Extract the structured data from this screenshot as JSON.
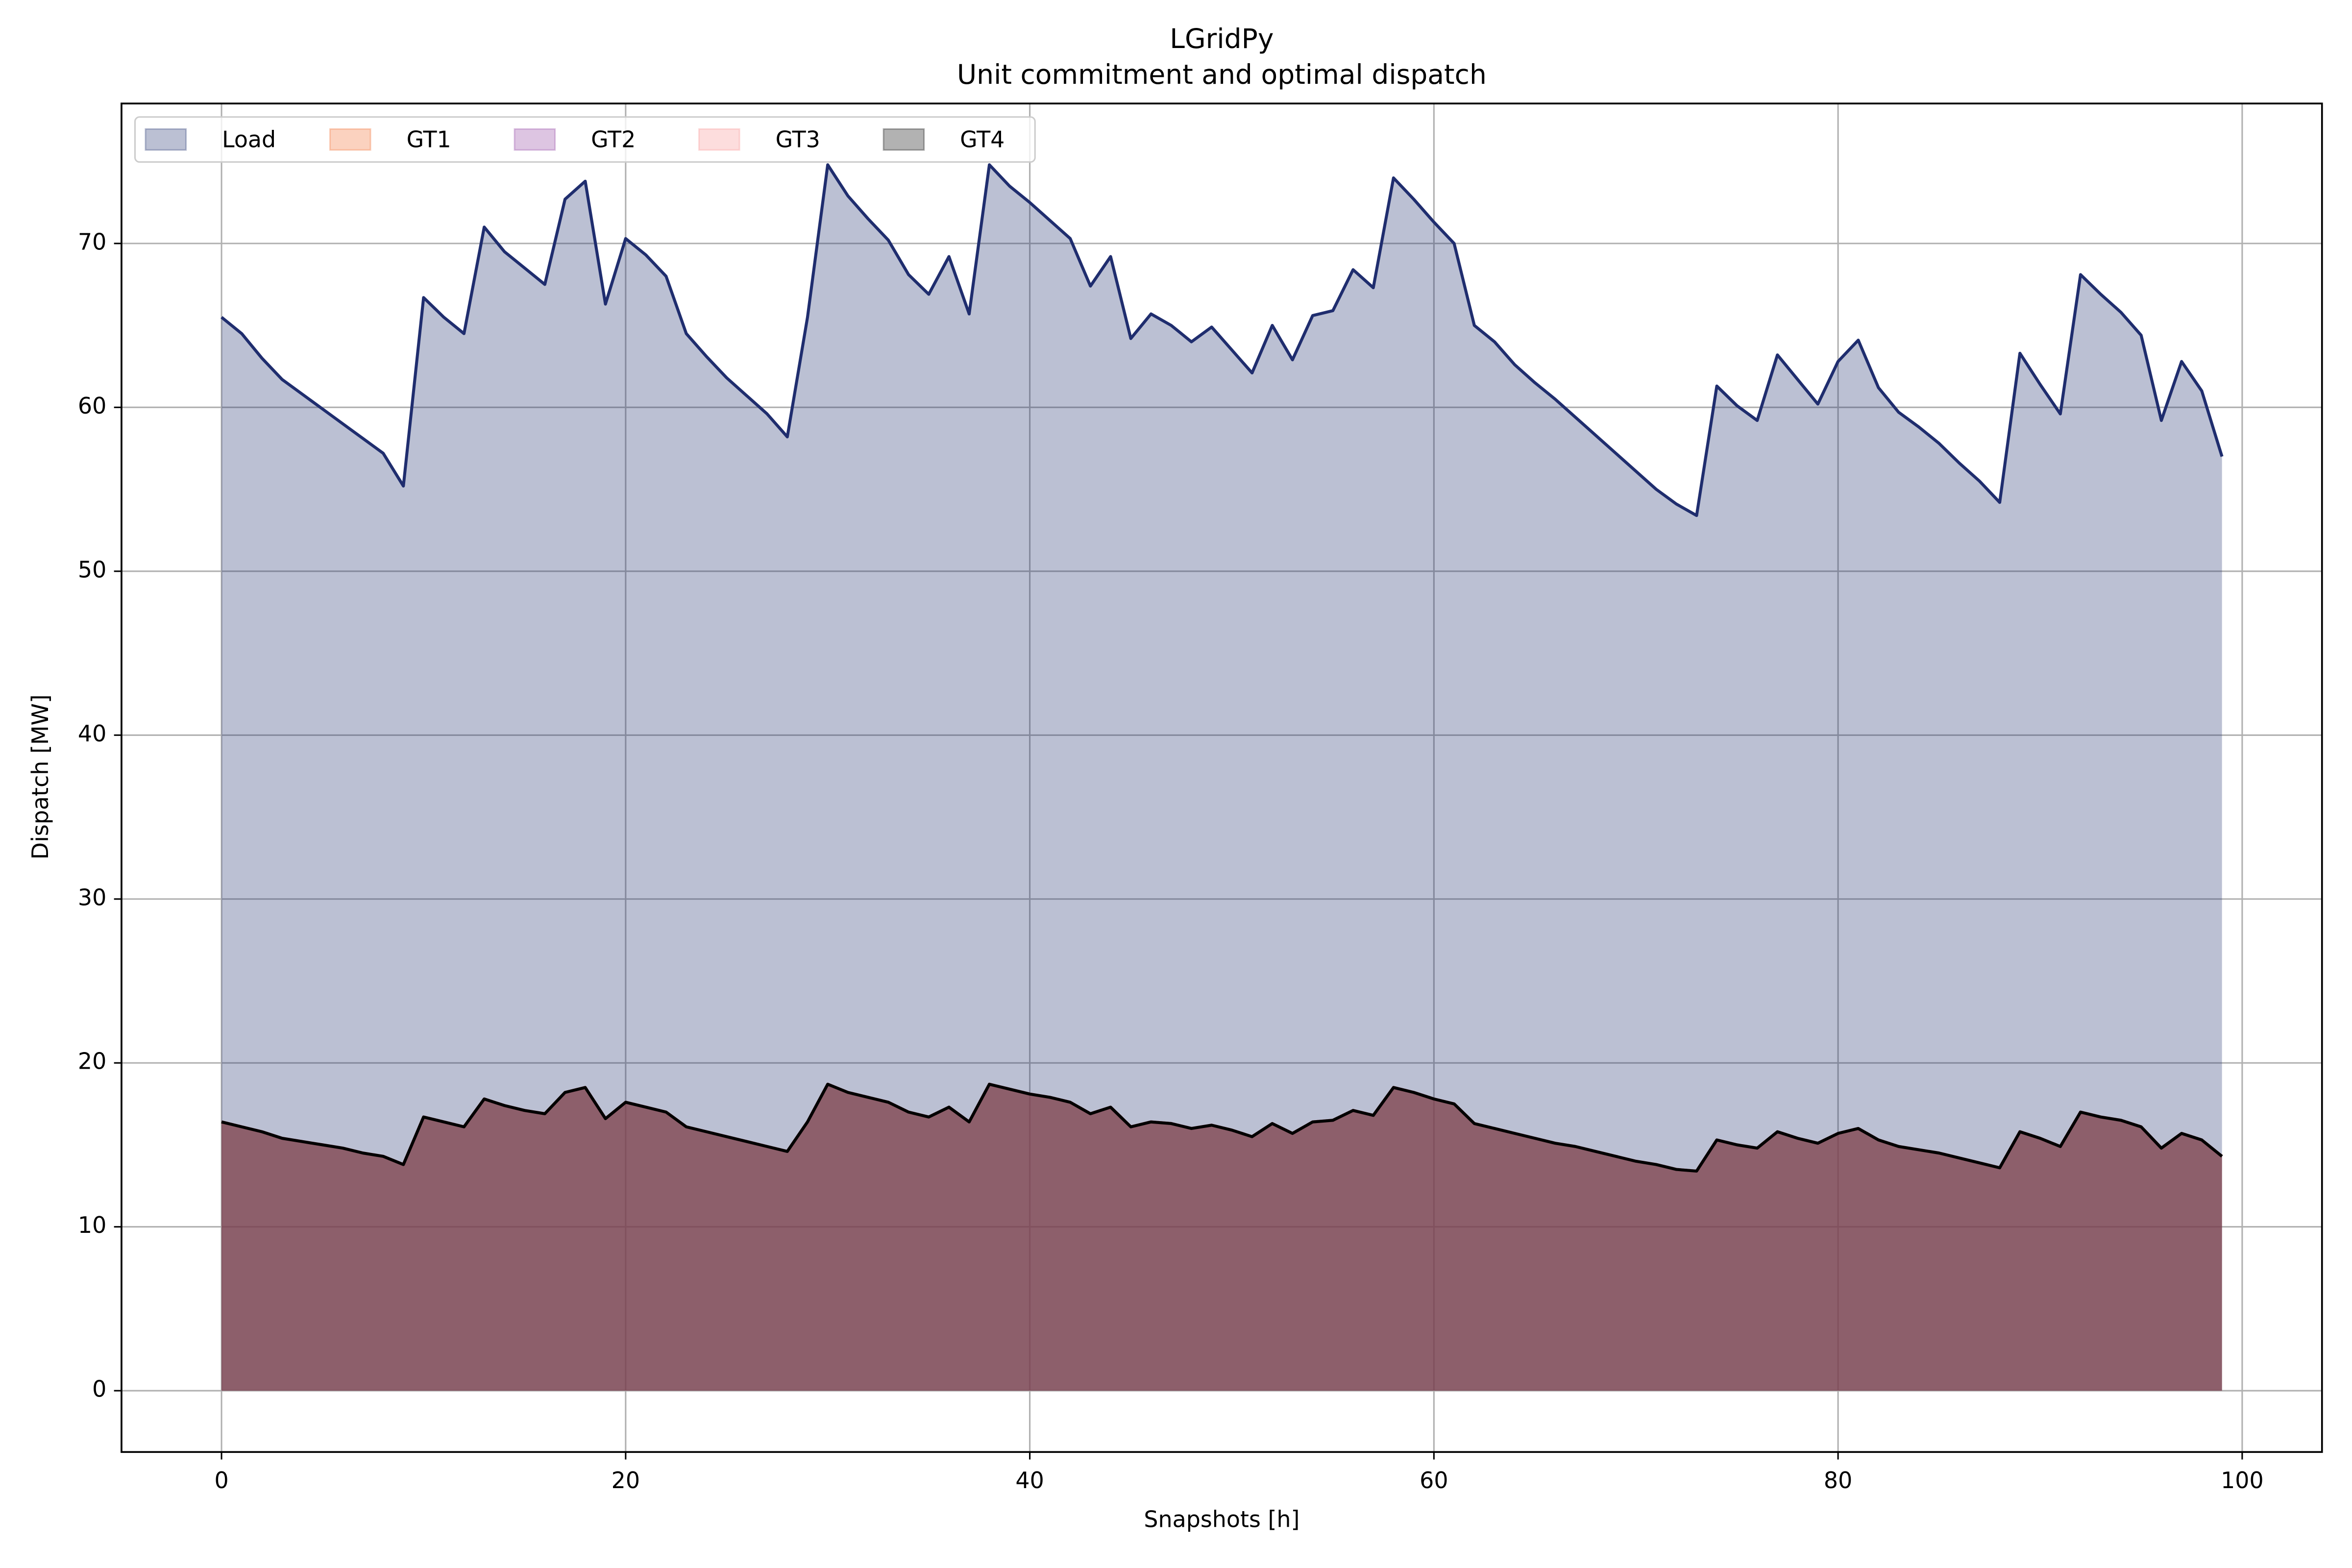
{
  "chart_data": {
    "type": "area",
    "title": "LGridPy",
    "subtitle": "Unit commitment and optimal dispatch",
    "x_label": "Snapshots [h]",
    "y_label": "Dispatch [MW]",
    "x": [
      0,
      1,
      2,
      3,
      4,
      5,
      6,
      7,
      8,
      9,
      10,
      11,
      12,
      13,
      14,
      15,
      16,
      17,
      18,
      19,
      20,
      21,
      22,
      23,
      24,
      25,
      26,
      27,
      28,
      29,
      30,
      31,
      32,
      33,
      34,
      35,
      36,
      37,
      38,
      39,
      40,
      41,
      42,
      43,
      44,
      45,
      46,
      47,
      48,
      49,
      50,
      51,
      52,
      53,
      54,
      55,
      56,
      57,
      58,
      59,
      60,
      61,
      62,
      63,
      64,
      65,
      66,
      67,
      68,
      69,
      70,
      71,
      72,
      73,
      74,
      75,
      76,
      77,
      78,
      79,
      80,
      81,
      82,
      83,
      84,
      85,
      86,
      87,
      88,
      89,
      90,
      91,
      92,
      93,
      94,
      95,
      96,
      97,
      98,
      99
    ],
    "series": [
      {
        "name": "Load",
        "color": "#1f2d6e",
        "values": [
          65.5,
          64.5,
          63,
          61.7,
          60.8,
          59.9,
          59,
          58.1,
          57.2,
          55.2,
          66.7,
          65.5,
          64.5,
          71,
          69.5,
          68.5,
          67.5,
          72.7,
          73.8,
          66.3,
          70.3,
          69.3,
          68,
          64.5,
          63.1,
          61.8,
          60.7,
          59.6,
          58.2,
          65.5,
          74.8,
          72.9,
          71.5,
          70.2,
          68.1,
          66.9,
          69.2,
          65.7,
          74.8,
          73.5,
          72.5,
          71.4,
          70.3,
          67.4,
          69.2,
          64.2,
          65.7,
          65,
          64,
          64.9,
          63.5,
          62.1,
          65,
          62.9,
          65.6,
          65.9,
          68.4,
          67.3,
          74,
          72.7,
          71.3,
          70,
          65,
          64,
          62.6,
          61.5,
          60.5,
          59.4,
          58.3,
          57.2,
          56.1,
          55,
          54.1,
          53.4,
          61.3,
          60.1,
          59.2,
          63.2,
          61.7,
          60.2,
          62.8,
          64.1,
          61.2,
          59.7,
          58.8,
          57.8,
          56.6,
          55.5,
          54.2,
          63.3,
          61.4,
          59.6,
          68.1,
          66.9,
          65.8,
          64.4,
          59.2,
          62.8,
          61,
          57
        ]
      },
      {
        "name": "GT1",
        "color": "#f26b2c",
        "values": [
          16.4,
          16.1,
          15.8,
          15.4,
          15.2,
          15.0,
          14.8,
          14.5,
          14.3,
          13.8,
          16.7,
          16.4,
          16.1,
          17.8,
          17.4,
          17.1,
          16.9,
          18.2,
          18.5,
          16.6,
          17.6,
          17.3,
          17.0,
          16.1,
          15.8,
          15.5,
          15.2,
          14.9,
          14.6,
          16.4,
          18.7,
          18.2,
          17.9,
          17.6,
          17.0,
          16.7,
          17.3,
          16.4,
          18.7,
          18.4,
          18.1,
          17.9,
          17.6,
          16.9,
          17.3,
          16.1,
          16.4,
          16.3,
          16.0,
          16.2,
          15.9,
          15.5,
          16.3,
          15.7,
          16.4,
          16.5,
          17.1,
          16.8,
          18.5,
          18.2,
          17.8,
          17.5,
          16.3,
          16.0,
          15.7,
          15.4,
          15.1,
          14.9,
          14.6,
          14.3,
          14.0,
          13.8,
          13.5,
          13.4,
          15.3,
          15.0,
          14.8,
          15.8,
          15.4,
          15.1,
          15.7,
          16.0,
          15.3,
          14.9,
          14.7,
          14.5,
          14.2,
          13.9,
          13.6,
          15.8,
          15.4,
          14.9,
          17.0,
          16.7,
          16.5,
          16.1,
          14.8,
          15.7,
          15.3,
          14.3
        ]
      },
      {
        "name": "GT2",
        "color": "#8e3f9e",
        "values": [
          16.4,
          16.1,
          15.8,
          15.4,
          15.2,
          15.0,
          14.8,
          14.5,
          14.3,
          13.8,
          16.7,
          16.4,
          16.1,
          17.8,
          17.4,
          17.1,
          16.9,
          18.2,
          18.5,
          16.6,
          17.6,
          17.3,
          17.0,
          16.1,
          15.8,
          15.5,
          15.2,
          14.9,
          14.6,
          16.4,
          18.7,
          18.2,
          17.9,
          17.6,
          17.0,
          16.7,
          17.3,
          16.4,
          18.7,
          18.4,
          18.1,
          17.9,
          17.6,
          16.9,
          17.3,
          16.1,
          16.4,
          16.3,
          16.0,
          16.2,
          15.9,
          15.5,
          16.3,
          15.7,
          16.4,
          16.5,
          17.1,
          16.8,
          18.5,
          18.2,
          17.8,
          17.5,
          16.3,
          16.0,
          15.7,
          15.4,
          15.1,
          14.9,
          14.6,
          14.3,
          14.0,
          13.8,
          13.5,
          13.4,
          15.3,
          15.0,
          14.8,
          15.8,
          15.4,
          15.1,
          15.7,
          16.0,
          15.3,
          14.9,
          14.7,
          14.5,
          14.2,
          13.9,
          13.6,
          15.8,
          15.4,
          14.9,
          17.0,
          16.7,
          16.5,
          16.1,
          14.8,
          15.7,
          15.3,
          14.3
        ]
      },
      {
        "name": "GT3",
        "color": "#f78f8f",
        "values": [
          16.4,
          16.1,
          15.8,
          15.4,
          15.2,
          15.0,
          14.8,
          14.5,
          14.3,
          13.8,
          16.7,
          16.4,
          16.1,
          17.8,
          17.4,
          17.1,
          16.9,
          18.2,
          18.5,
          16.6,
          17.6,
          17.3,
          17.0,
          16.1,
          15.8,
          15.5,
          15.2,
          14.9,
          14.6,
          16.4,
          18.7,
          18.2,
          17.9,
          17.6,
          17.0,
          16.7,
          17.3,
          16.4,
          18.7,
          18.4,
          18.1,
          17.9,
          17.6,
          16.9,
          17.3,
          16.1,
          16.4,
          16.3,
          16.0,
          16.2,
          15.9,
          15.5,
          16.3,
          15.7,
          16.4,
          16.5,
          17.1,
          16.8,
          18.5,
          18.2,
          17.8,
          17.5,
          16.3,
          16.0,
          15.7,
          15.4,
          15.1,
          14.9,
          14.6,
          14.3,
          14.0,
          13.8,
          13.5,
          13.4,
          15.3,
          15.0,
          14.8,
          15.8,
          15.4,
          15.1,
          15.7,
          16.0,
          15.3,
          14.9,
          14.7,
          14.5,
          14.2,
          13.9,
          13.6,
          15.8,
          15.4,
          14.9,
          17.0,
          16.7,
          16.5,
          16.1,
          14.8,
          15.7,
          15.3,
          14.3
        ]
      },
      {
        "name": "GT4",
        "color": "#000000",
        "values": [
          16.4,
          16.1,
          15.8,
          15.4,
          15.2,
          15.0,
          14.8,
          14.5,
          14.3,
          13.8,
          16.7,
          16.4,
          16.1,
          17.8,
          17.4,
          17.1,
          16.9,
          18.2,
          18.5,
          16.6,
          17.6,
          17.3,
          17.0,
          16.1,
          15.8,
          15.5,
          15.2,
          14.9,
          14.6,
          16.4,
          18.7,
          18.2,
          17.9,
          17.6,
          17.0,
          16.7,
          17.3,
          16.4,
          18.7,
          18.4,
          18.1,
          17.9,
          17.6,
          16.9,
          17.3,
          16.1,
          16.4,
          16.3,
          16.0,
          16.2,
          15.9,
          15.5,
          16.3,
          15.7,
          16.4,
          16.5,
          17.1,
          16.8,
          18.5,
          18.2,
          17.8,
          17.5,
          16.3,
          16.0,
          15.7,
          15.4,
          15.1,
          14.9,
          14.6,
          14.3,
          14.0,
          13.8,
          13.5,
          13.4,
          15.3,
          15.0,
          14.8,
          15.8,
          15.4,
          15.1,
          15.7,
          16.0,
          15.3,
          14.9,
          14.7,
          14.5,
          14.2,
          13.9,
          13.6,
          15.8,
          15.4,
          14.9,
          17.0,
          16.7,
          16.5,
          16.1,
          14.8,
          15.7,
          15.3,
          14.3
        ]
      }
    ],
    "xlim": [
      -4.95,
      103.95
    ],
    "xticks": [
      0,
      20,
      40,
      60,
      80,
      100
    ],
    "ylim": [
      -3.74,
      78.54
    ],
    "yticks": [
      0,
      10,
      20,
      30,
      40,
      50,
      60,
      70
    ],
    "grid": true,
    "legend": "upper left"
  }
}
